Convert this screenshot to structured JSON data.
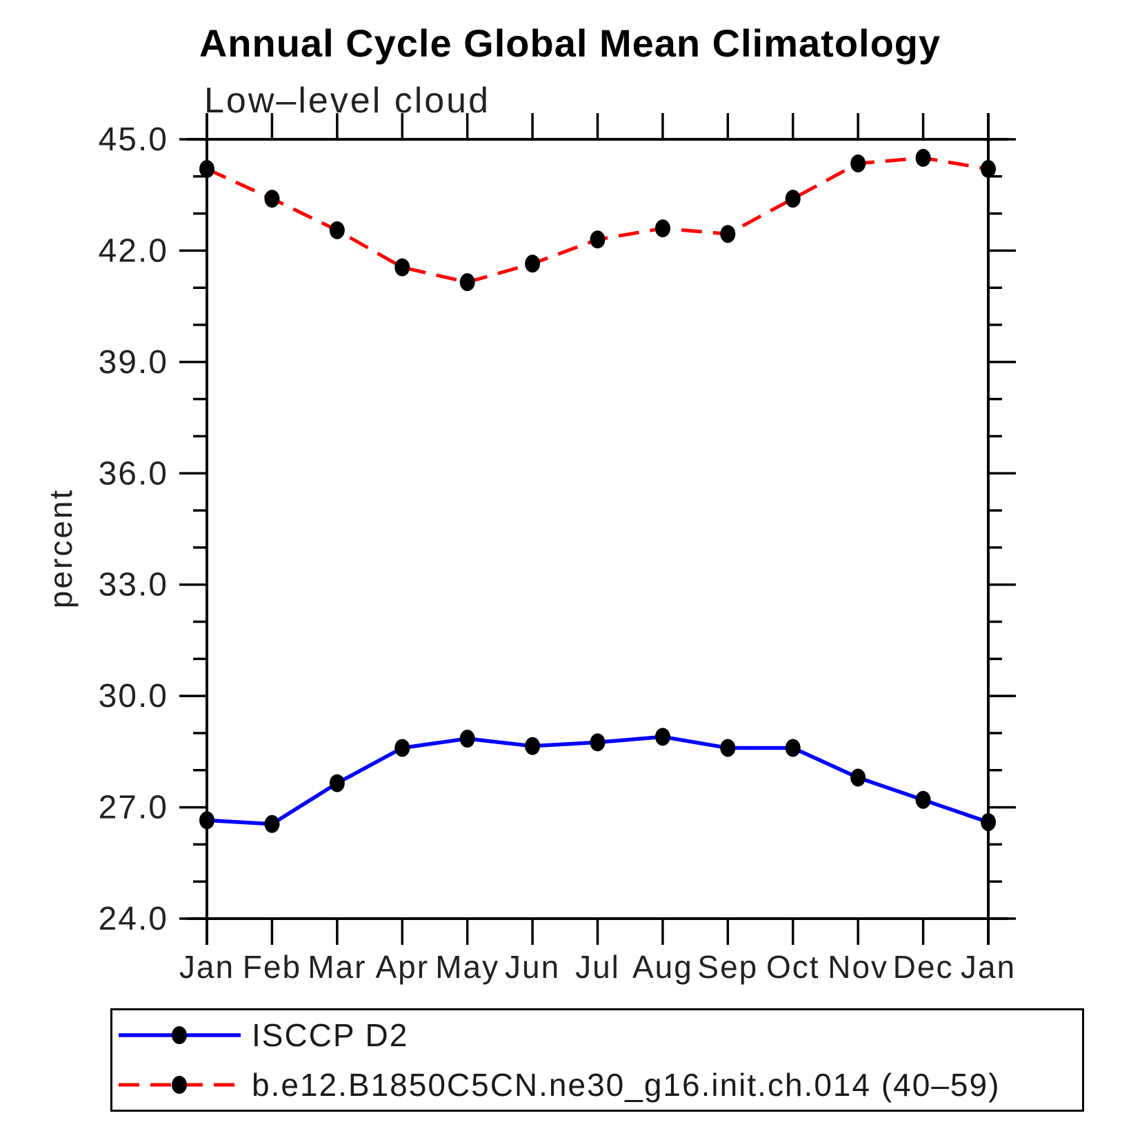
{
  "header": {
    "title": "Annual Cycle Global Mean Climatology",
    "subtitle": "Low–level cloud"
  },
  "chart_data": {
    "type": "line",
    "title": "Annual Cycle Global Mean Climatology",
    "subtitle": "Low–level cloud",
    "xlabel": "",
    "ylabel": "percent",
    "x_categories": [
      "Jan",
      "Feb",
      "Mar",
      "Apr",
      "May",
      "Jun",
      "Jul",
      "Aug",
      "Sep",
      "Oct",
      "Nov",
      "Dec",
      "Jan"
    ],
    "ylim": [
      24.0,
      45.0
    ],
    "y_major_ticks": [
      24,
      27,
      30,
      33,
      36,
      39,
      42,
      45
    ],
    "y_major_tick_labels": [
      "24.0",
      "27.0",
      "30.0",
      "33.0",
      "36.0",
      "39.0",
      "42.0",
      "45.0"
    ],
    "y_minor_step": 1.0,
    "grid": false,
    "legend_position": "bottom",
    "axis_color": "#000000",
    "series": [
      {
        "name": "ISCCP D2",
        "color": "#0000ff",
        "line_style": "solid",
        "marker": "filled-circle",
        "marker_color": "#000000",
        "values": [
          26.65,
          26.55,
          27.65,
          28.6,
          28.85,
          28.65,
          28.75,
          28.9,
          28.6,
          28.6,
          27.8,
          27.2,
          26.6
        ]
      },
      {
        "name": "b.e12.B1850C5CN.ne30_g16.init.ch.014 (40–59)",
        "color": "#ff0000",
        "line_style": "dashed",
        "marker": "filled-circle",
        "marker_color": "#000000",
        "values": [
          44.2,
          43.4,
          42.55,
          41.55,
          41.15,
          41.65,
          42.3,
          42.6,
          42.45,
          43.4,
          44.35,
          44.5,
          44.2
        ]
      }
    ]
  }
}
